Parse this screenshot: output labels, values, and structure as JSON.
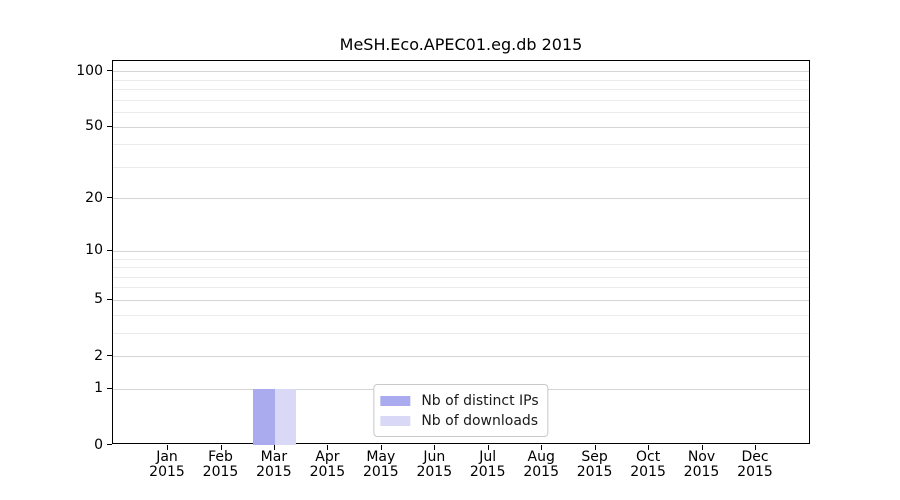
{
  "chart_data": {
    "type": "bar",
    "title": "MeSH.Eco.APEC01.eg.db 2015",
    "categories": [
      "Jan 2015",
      "Feb 2015",
      "Mar 2015",
      "Apr 2015",
      "May 2015",
      "Jun 2015",
      "Jul 2015",
      "Aug 2015",
      "Sep 2015",
      "Oct 2015",
      "Nov 2015",
      "Dec 2015"
    ],
    "series": [
      {
        "name": "Nb of distinct IPs",
        "color": "#aaaaee",
        "values": [
          0,
          0,
          1,
          0,
          0,
          0,
          0,
          0,
          0,
          0,
          0,
          0
        ]
      },
      {
        "name": "Nb of downloads",
        "color": "#d9d9f7",
        "values": [
          0,
          0,
          1,
          0,
          0,
          0,
          0,
          0,
          0,
          0,
          0,
          0
        ]
      }
    ],
    "yscale": "log1p",
    "y_ticks": [
      0,
      1,
      2,
      5,
      10,
      20,
      50,
      100
    ],
    "y_minor_ticks": [
      3,
      4,
      6,
      7,
      8,
      9,
      30,
      40,
      60,
      70,
      80,
      90
    ],
    "ylim": [
      0,
      113.5
    ],
    "xlabel": "",
    "ylabel": "",
    "grid": true,
    "legend_position": "lower center",
    "colors": {
      "frame": "#000000",
      "grid_major": "#d4d4d4",
      "grid_minor": "#ebebeb",
      "text": "#000000",
      "legend_border": "#c9c9c9"
    }
  }
}
